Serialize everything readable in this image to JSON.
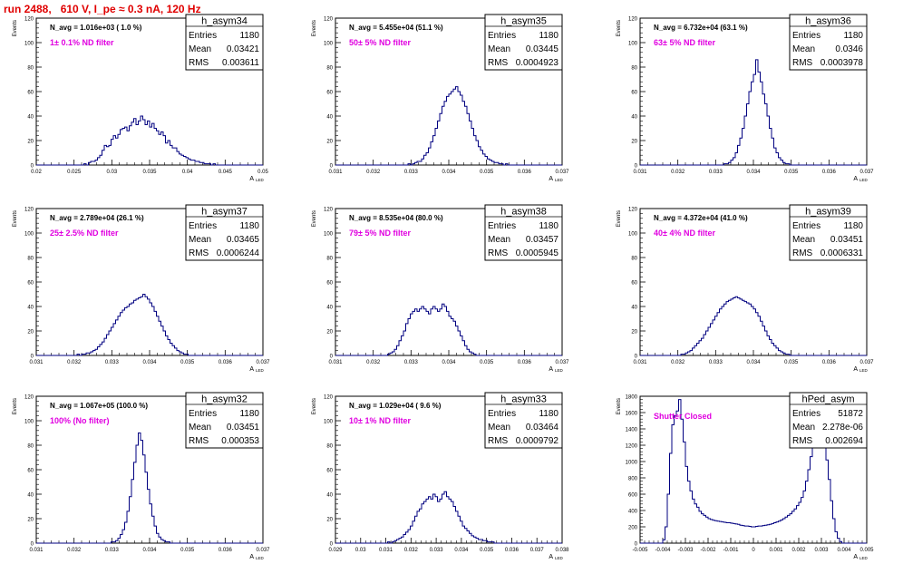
{
  "page_title": "run 2488,   610 V, I_pe ≈ 0.3 nA, 120 Hz",
  "chart_data": [
    {
      "type": "bar",
      "hist": "h_asym34",
      "title": "h_asym34",
      "stats": [
        [
          "Entries",
          "1180"
        ],
        [
          "Mean",
          "0.03421"
        ],
        [
          "RMS",
          "0.003611"
        ]
      ],
      "navg": "N_avg = 1.016e+03 ( 1.0 %)",
      "filter": "1± 0.1% ND filter",
      "ylabel": "Events",
      "xlabel": "A",
      "xlabel_sub": "LED",
      "xlim": [
        0.019,
        0.05
      ],
      "ylim": [
        0,
        120
      ],
      "xticks": [
        "0.02",
        "0.025",
        "0.03",
        "0.035",
        "0.04",
        "0.045",
        "0.05"
      ],
      "yticks": [
        "0",
        "20",
        "40",
        "60",
        "80",
        "100",
        "120"
      ],
      "values": [
        0,
        0,
        0,
        0,
        0,
        0,
        0,
        0,
        0,
        0,
        0,
        0,
        0,
        0,
        0,
        0,
        0,
        0,
        0,
        0,
        0,
        1,
        0,
        2,
        3,
        3,
        4,
        6,
        8,
        12,
        16,
        15,
        16,
        21,
        24,
        22,
        25,
        29,
        30,
        31,
        28,
        32,
        35,
        38,
        33,
        36,
        40,
        37,
        33,
        36,
        31,
        34,
        30,
        28,
        25,
        27,
        24,
        18,
        20,
        16,
        14,
        14,
        11,
        9,
        8,
        7,
        6,
        5,
        4,
        4,
        3,
        3,
        2,
        2,
        1,
        1,
        1,
        0,
        1,
        0,
        0,
        0,
        0,
        0,
        0,
        0,
        0,
        0,
        0,
        0,
        0,
        0,
        0,
        0,
        0,
        0,
        0,
        0,
        0,
        0
      ]
    },
    {
      "type": "bar",
      "hist": "h_asym35",
      "title": "h_asym35",
      "stats": [
        [
          "Entries",
          "1180"
        ],
        [
          "Mean",
          "0.03445"
        ],
        [
          "RMS",
          "0.0004923"
        ]
      ],
      "navg": "N_avg = 5.455e+04 (51.1 %)",
      "filter": "50± 5% ND filter",
      "ylabel": "Events",
      "xlabel": "A",
      "xlabel_sub": "LED",
      "xlim": [
        0.031,
        0.037
      ],
      "ylim": [
        0,
        120
      ],
      "xticks": [
        "0.031",
        "0.032",
        "0.033",
        "0.034",
        "0.035",
        "0.036",
        "0.037"
      ],
      "yticks": [
        "0",
        "20",
        "40",
        "60",
        "80",
        "100",
        "120"
      ],
      "values": [
        0,
        0,
        0,
        0,
        0,
        0,
        0,
        0,
        0,
        0,
        0,
        0,
        0,
        0,
        0,
        0,
        0,
        0,
        0,
        0,
        0,
        0,
        0,
        0,
        0,
        0,
        0,
        0,
        0,
        0,
        0,
        0,
        1,
        0,
        1,
        2,
        3,
        3,
        5,
        8,
        10,
        14,
        19,
        24,
        30,
        36,
        42,
        48,
        52,
        56,
        58,
        60,
        62,
        64,
        60,
        57,
        52,
        48,
        42,
        36,
        30,
        24,
        20,
        15,
        12,
        9,
        7,
        5,
        4,
        3,
        2,
        2,
        1,
        1,
        0,
        1,
        0,
        0,
        0,
        0,
        0,
        0,
        0,
        0,
        0,
        0,
        0,
        0,
        0,
        0,
        0,
        0,
        0,
        0,
        0,
        0,
        0,
        0,
        0,
        0
      ]
    },
    {
      "type": "bar",
      "hist": "h_asym36",
      "title": "h_asym36",
      "stats": [
        [
          "Entries",
          "1180"
        ],
        [
          "Mean",
          "0.0346"
        ],
        [
          "RMS",
          "0.0003978"
        ]
      ],
      "navg": "N_avg = 6.732e+04 (63.1 %)",
      "filter": "63± 5% ND filter",
      "ylabel": "Events",
      "xlabel": "A",
      "xlabel_sub": "LED",
      "xlim": [
        0.031,
        0.037
      ],
      "ylim": [
        0,
        120
      ],
      "xticks": [
        "0.031",
        "0.032",
        "0.033",
        "0.034",
        "0.035",
        "0.036",
        "0.037"
      ],
      "yticks": [
        "0",
        "20",
        "40",
        "60",
        "80",
        "100",
        "120"
      ],
      "values": [
        0,
        0,
        0,
        0,
        0,
        0,
        0,
        0,
        0,
        0,
        0,
        0,
        0,
        0,
        0,
        0,
        0,
        0,
        0,
        0,
        0,
        0,
        0,
        0,
        0,
        0,
        0,
        0,
        0,
        0,
        0,
        0,
        0,
        0,
        0,
        0,
        0,
        1,
        1,
        2,
        4,
        6,
        10,
        16,
        22,
        30,
        40,
        50,
        60,
        68,
        74,
        86,
        76,
        68,
        58,
        50,
        40,
        30,
        22,
        14,
        10,
        6,
        4,
        2,
        1,
        1,
        0,
        0,
        0,
        0,
        0,
        0,
        0,
        0,
        0,
        0,
        0,
        0,
        0,
        0,
        0,
        0,
        0,
        0,
        0,
        0,
        0,
        0,
        0,
        0,
        0,
        0,
        0,
        0,
        0,
        0,
        0,
        0,
        0,
        0
      ]
    },
    {
      "type": "bar",
      "hist": "h_asym37",
      "title": "h_asym37",
      "stats": [
        [
          "Entries",
          "1180"
        ],
        [
          "Mean",
          "0.03465"
        ],
        [
          "RMS",
          "0.0006244"
        ]
      ],
      "navg": "N_avg = 2.789e+04 (26.1 %)",
      "filter": "25± 2.5% ND filter",
      "ylabel": "Events",
      "xlabel": "A",
      "xlabel_sub": "LED",
      "xlim": [
        0.031,
        0.037
      ],
      "ylim": [
        0,
        120
      ],
      "xticks": [
        "0.031",
        "0.032",
        "0.033",
        "0.034",
        "0.035",
        "0.036",
        "0.037"
      ],
      "yticks": [
        "0",
        "20",
        "40",
        "60",
        "80",
        "100",
        "120"
      ],
      "values": [
        0,
        0,
        0,
        0,
        0,
        0,
        0,
        0,
        0,
        0,
        0,
        0,
        0,
        0,
        0,
        0,
        0,
        0,
        1,
        0,
        1,
        1,
        2,
        2,
        3,
        4,
        5,
        7,
        9,
        11,
        14,
        17,
        20,
        23,
        26,
        29,
        32,
        35,
        37,
        39,
        40,
        42,
        43,
        45,
        46,
        47,
        48,
        50,
        48,
        46,
        43,
        40,
        36,
        32,
        28,
        24,
        20,
        16,
        13,
        10,
        8,
        6,
        4,
        3,
        2,
        1,
        1,
        0,
        0,
        0,
        0,
        0,
        0,
        0,
        0,
        0,
        0,
        0,
        0,
        0,
        0,
        0,
        0,
        0,
        0,
        0,
        0,
        0,
        0,
        0,
        0,
        0,
        0,
        0,
        0,
        0,
        0,
        0,
        0,
        0
      ]
    },
    {
      "type": "bar",
      "hist": "h_asym38",
      "title": "h_asym38",
      "stats": [
        [
          "Entries",
          "1180"
        ],
        [
          "Mean",
          "0.03457"
        ],
        [
          "RMS",
          "0.0005945"
        ]
      ],
      "navg": "N_avg = 8.535e+04 (80.0 %)",
      "filter": "79± 5% ND filter",
      "ylabel": "Events",
      "xlabel": "A",
      "xlabel_sub": "LED",
      "xlim": [
        0.031,
        0.037
      ],
      "ylim": [
        0,
        120
      ],
      "xticks": [
        "0.031",
        "0.032",
        "0.033",
        "0.034",
        "0.035",
        "0.036",
        "0.037"
      ],
      "yticks": [
        "0",
        "20",
        "40",
        "60",
        "80",
        "100",
        "120"
      ],
      "values": [
        0,
        0,
        0,
        0,
        0,
        0,
        0,
        0,
        0,
        0,
        0,
        0,
        0,
        0,
        0,
        0,
        0,
        0,
        0,
        0,
        0,
        0,
        0,
        1,
        2,
        3,
        5,
        8,
        12,
        16,
        20,
        26,
        30,
        34,
        36,
        38,
        36,
        38,
        40,
        38,
        36,
        34,
        38,
        40,
        38,
        36,
        38,
        42,
        40,
        36,
        32,
        30,
        28,
        24,
        20,
        16,
        12,
        8,
        5,
        3,
        2,
        1,
        0,
        0,
        0,
        0,
        0,
        0,
        0,
        0,
        0,
        0,
        0,
        0,
        0,
        0,
        0,
        0,
        0,
        0,
        0,
        0,
        0,
        0,
        0,
        0,
        0,
        0,
        0,
        0,
        0,
        0,
        0,
        0,
        0,
        0,
        0,
        0,
        0,
        0
      ]
    },
    {
      "type": "bar",
      "hist": "h_asym39",
      "title": "h_asym39",
      "stats": [
        [
          "Entries",
          "1180"
        ],
        [
          "Mean",
          "0.03451"
        ],
        [
          "RMS",
          "0.0006331"
        ]
      ],
      "navg": "N_avg = 4.372e+04 (41.0 %)",
      "filter": "40± 4% ND filter",
      "ylabel": "Events",
      "xlabel": "A",
      "xlabel_sub": "LED",
      "xlim": [
        0.031,
        0.037
      ],
      "ylim": [
        0,
        120
      ],
      "xticks": [
        "0.031",
        "0.032",
        "0.033",
        "0.034",
        "0.035",
        "0.036",
        "0.037"
      ],
      "yticks": [
        "0",
        "20",
        "40",
        "60",
        "80",
        "100",
        "120"
      ],
      "values": [
        0,
        0,
        0,
        0,
        0,
        0,
        0,
        0,
        0,
        0,
        0,
        0,
        0,
        0,
        0,
        0,
        0,
        0,
        1,
        1,
        2,
        3,
        4,
        6,
        8,
        10,
        12,
        14,
        17,
        20,
        23,
        26,
        29,
        32,
        35,
        38,
        40,
        42,
        44,
        45,
        46,
        47,
        48,
        47,
        46,
        45,
        44,
        43,
        42,
        40,
        38,
        35,
        32,
        28,
        24,
        20,
        16,
        13,
        10,
        8,
        6,
        4,
        3,
        2,
        1,
        1,
        0,
        0,
        0,
        0,
        0,
        0,
        0,
        0,
        0,
        0,
        0,
        0,
        0,
        0,
        0,
        0,
        0,
        0,
        0,
        0,
        0,
        0,
        0,
        0,
        0,
        0,
        0,
        0,
        0,
        0,
        0,
        0,
        0,
        0
      ]
    },
    {
      "type": "bar",
      "hist": "h_asym32",
      "title": "h_asym32",
      "stats": [
        [
          "Entries",
          "1180"
        ],
        [
          "Mean",
          "0.03451"
        ],
        [
          "RMS",
          "0.000353"
        ]
      ],
      "navg": "N_avg = 1.067e+05 (100.0 %)",
      "filter": "100% (No filter)",
      "ylabel": "Events",
      "xlabel": "A",
      "xlabel_sub": "LED",
      "xlim": [
        0.031,
        0.037
      ],
      "ylim": [
        0,
        120
      ],
      "xticks": [
        "0.031",
        "0.032",
        "0.033",
        "0.034",
        "0.035",
        "0.036",
        "0.037"
      ],
      "yticks": [
        "0",
        "20",
        "40",
        "60",
        "80",
        "100",
        "120"
      ],
      "values": [
        0,
        0,
        0,
        0,
        0,
        0,
        0,
        0,
        0,
        0,
        0,
        0,
        0,
        0,
        0,
        0,
        0,
        0,
        0,
        0,
        0,
        0,
        0,
        0,
        0,
        0,
        0,
        0,
        0,
        0,
        0,
        0,
        0,
        1,
        1,
        2,
        4,
        7,
        11,
        17,
        26,
        38,
        52,
        66,
        80,
        90,
        84,
        72,
        58,
        44,
        32,
        22,
        14,
        8,
        5,
        3,
        2,
        1,
        1,
        0,
        0,
        0,
        0,
        0,
        0,
        0,
        0,
        0,
        0,
        0,
        0,
        0,
        0,
        0,
        0,
        0,
        0,
        0,
        0,
        0,
        0,
        0,
        0,
        0,
        0,
        0,
        0,
        0,
        0,
        0,
        0,
        0,
        0,
        0,
        0,
        0,
        0,
        0,
        0,
        0
      ]
    },
    {
      "type": "bar",
      "hist": "h_asym33",
      "title": "h_asym33",
      "stats": [
        [
          "Entries",
          "1180"
        ],
        [
          "Mean",
          "0.03464"
        ],
        [
          "RMS",
          "0.0009792"
        ]
      ],
      "navg": "N_avg = 1.029e+04 ( 9.6 %)",
      "filter": "10± 1% ND filter",
      "ylabel": "Events",
      "xlabel": "A",
      "xlabel_sub": "LED",
      "xlim": [
        0.029,
        0.038
      ],
      "ylim": [
        0,
        120
      ],
      "xticks": [
        "0.029",
        "0.03",
        "0.031",
        "0.032",
        "0.033",
        "0.034",
        "0.035",
        "0.036",
        "0.037",
        "0.038"
      ],
      "yticks": [
        "0",
        "20",
        "40",
        "60",
        "80",
        "100",
        "120"
      ],
      "values": [
        0,
        0,
        0,
        0,
        0,
        0,
        0,
        0,
        0,
        0,
        0,
        0,
        0,
        0,
        0,
        0,
        0,
        0,
        0,
        0,
        0,
        0,
        0,
        1,
        0,
        1,
        2,
        3,
        4,
        5,
        7,
        9,
        11,
        14,
        18,
        22,
        26,
        28,
        32,
        34,
        36,
        38,
        36,
        40,
        38,
        34,
        36,
        40,
        42,
        38,
        36,
        34,
        30,
        26,
        22,
        18,
        14,
        12,
        10,
        8,
        6,
        5,
        4,
        3,
        3,
        2,
        2,
        1,
        1,
        1,
        0,
        0,
        0,
        0,
        0,
        0,
        0,
        0,
        0,
        0,
        0,
        0,
        0,
        0,
        0,
        0,
        0,
        0,
        0,
        0,
        0,
        0,
        0,
        0,
        0,
        0,
        0,
        0,
        0,
        0
      ]
    },
    {
      "type": "bar",
      "hist": "hPed_asym",
      "title": "hPed_asym",
      "stats": [
        [
          "Entries",
          "51872"
        ],
        [
          "Mean",
          "2.278e-06"
        ],
        [
          "RMS",
          "0.002694"
        ]
      ],
      "navg": "",
      "filter": "Shutter Closed",
      "ylabel": "Events",
      "xlabel": "A",
      "xlabel_sub": "LED",
      "xlim": [
        -0.005,
        0.005
      ],
      "ylim": [
        0,
        1800
      ],
      "xticks": [
        "-0.005",
        "-0.004",
        "-0.003",
        "-0.002",
        "-0.001",
        "0",
        "0.001",
        "0.002",
        "0.003",
        "0.004",
        "0.005"
      ],
      "yticks": [
        "0",
        "200",
        "400",
        "600",
        "800",
        "1000",
        "1200",
        "1400",
        "1600",
        "1800"
      ],
      "values": [
        0,
        0,
        0,
        0,
        0,
        0,
        0,
        0,
        0,
        0,
        40,
        200,
        600,
        1100,
        1450,
        1560,
        1620,
        1760,
        1520,
        1240,
        940,
        760,
        640,
        540,
        480,
        440,
        390,
        360,
        340,
        320,
        300,
        290,
        280,
        275,
        270,
        265,
        260,
        255,
        250,
        250,
        245,
        240,
        235,
        230,
        220,
        215,
        210,
        210,
        205,
        200,
        200,
        205,
        210,
        210,
        215,
        220,
        225,
        230,
        240,
        250,
        260,
        270,
        285,
        300,
        320,
        340,
        360,
        390,
        420,
        460,
        500,
        560,
        640,
        760,
        900,
        1060,
        1200,
        1320,
        1380,
        1400,
        1340,
        1220,
        1020,
        780,
        520,
        300,
        140,
        60,
        20,
        0,
        0,
        0,
        0,
        0,
        0,
        0,
        0,
        0,
        0,
        0
      ]
    }
  ]
}
